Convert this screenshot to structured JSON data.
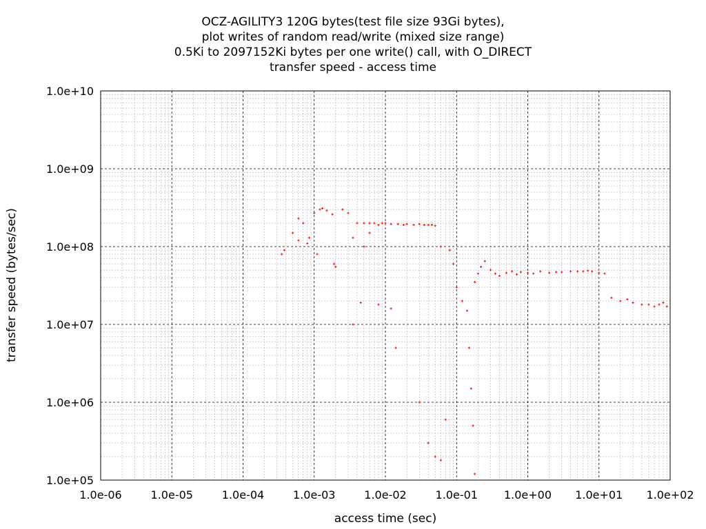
{
  "chart_data": {
    "type": "scatter",
    "title_lines": [
      "OCZ-AGILITY3 120G bytes(test file size 93Gi bytes),",
      "plot writes of random read/write (mixed size range)",
      "0.5Ki to 2097152Ki bytes per one write() call, with O_DIRECT",
      "transfer speed - access time"
    ],
    "xlabel": "access time (sec)",
    "ylabel": "transfer speed (bytes/sec)",
    "x_scale": "log",
    "y_scale": "log",
    "xlim": [
      1e-06,
      100
    ],
    "ylim": [
      100000.0,
      10000000000.0
    ],
    "x_ticks": [
      1e-06,
      1e-05,
      0.0001,
      0.001,
      0.01,
      0.1,
      1,
      10,
      100
    ],
    "x_tick_labels": [
      "1.0e-06",
      "1.0e-05",
      "1.0e-04",
      "1.0e-03",
      "1.0e-02",
      "1.0e-01",
      "1.0e+00",
      "1.0e+01",
      "1.0e+02"
    ],
    "y_ticks": [
      100000.0,
      1000000.0,
      10000000.0,
      100000000.0,
      1000000000.0,
      10000000000.0
    ],
    "y_tick_labels": [
      "1.0e+05",
      "1.0e+06",
      "1.0e+07",
      "1.0e+08",
      "1.0e+09",
      "1.0e+10"
    ],
    "grid": "major and minor, dashed",
    "marker_color": "#ff0000",
    "series": [
      {
        "points": [
          [
            0.00035,
            80000000.0
          ],
          [
            0.00038,
            90000000.0
          ],
          [
            0.0005,
            150000000.0
          ],
          [
            0.0006,
            120000000.0
          ],
          [
            0.0006,
            230000000.0
          ],
          [
            0.0007,
            200000000.0
          ],
          [
            0.0008,
            110000000.0
          ],
          [
            0.00085,
            130000000.0
          ],
          [
            0.001,
            270000000.0
          ],
          [
            0.0011,
            80000000.0
          ],
          [
            0.0012,
            300000000.0
          ],
          [
            0.0013,
            310000000.0
          ],
          [
            0.0015,
            290000000.0
          ],
          [
            0.0018,
            260000000.0
          ],
          [
            0.0019,
            60000000.0
          ],
          [
            0.002,
            55000000.0
          ],
          [
            0.0025,
            300000000.0
          ],
          [
            0.003,
            270000000.0
          ],
          [
            0.0035,
            130000000.0
          ],
          [
            0.0035,
            10000000.0
          ],
          [
            0.004,
            200000000.0
          ],
          [
            0.0045,
            19000000.0
          ],
          [
            0.005,
            100000000.0
          ],
          [
            0.005,
            200000000.0
          ],
          [
            0.006,
            200000000.0
          ],
          [
            0.006,
            150000000.0
          ],
          [
            0.007,
            200000000.0
          ],
          [
            0.008,
            190000000.0
          ],
          [
            0.008,
            18000000.0
          ],
          [
            0.009,
            200000000.0
          ],
          [
            0.01,
            200000000.0
          ],
          [
            0.012,
            195000000.0
          ],
          [
            0.012,
            16000000.0
          ],
          [
            0.014,
            5000000.0
          ],
          [
            0.015,
            195000000.0
          ],
          [
            0.018,
            190000000.0
          ],
          [
            0.02,
            195000000.0
          ],
          [
            0.025,
            190000000.0
          ],
          [
            0.03,
            195000000.0
          ],
          [
            0.035,
            190000000.0
          ],
          [
            0.04,
            190000000.0
          ],
          [
            0.045,
            190000000.0
          ],
          [
            0.05,
            185000000.0
          ],
          [
            0.03,
            1000000.0
          ],
          [
            0.04,
            300000.0
          ],
          [
            0.05,
            200000.0
          ],
          [
            0.06,
            180000.0
          ],
          [
            0.07,
            600000.0
          ],
          [
            0.06,
            100000000.0
          ],
          [
            0.08,
            90000000.0
          ],
          [
            0.09,
            60000000.0
          ],
          [
            0.1,
            30000000.0
          ],
          [
            0.12,
            20000000.0
          ],
          [
            0.14,
            15000000.0
          ],
          [
            0.15,
            5000000.0
          ],
          [
            0.16,
            1500000.0
          ],
          [
            0.17,
            500000.0
          ],
          [
            0.18,
            120000.0
          ],
          [
            0.18,
            35000000.0
          ],
          [
            0.2,
            45000000.0
          ],
          [
            0.22,
            55000000.0
          ],
          [
            0.25,
            65000000.0
          ],
          [
            0.3,
            50000000.0
          ],
          [
            0.35,
            45000000.0
          ],
          [
            0.4,
            42000000.0
          ],
          [
            0.5,
            46000000.0
          ],
          [
            0.6,
            48000000.0
          ],
          [
            0.7,
            44000000.0
          ],
          [
            0.8,
            47000000.0
          ],
          [
            1.0,
            46000000.0
          ],
          [
            1.2,
            45000000.0
          ],
          [
            1.5,
            48000000.0
          ],
          [
            2.0,
            46000000.0
          ],
          [
            2.5,
            47000000.0
          ],
          [
            3.0,
            47000000.0
          ],
          [
            4.0,
            48000000.0
          ],
          [
            5.0,
            48000000.0
          ],
          [
            6.0,
            48000000.0
          ],
          [
            7.0,
            49000000.0
          ],
          [
            8.0,
            48000000.0
          ],
          [
            10.0,
            46000000.0
          ],
          [
            12.0,
            45000000.0
          ],
          [
            15.0,
            22000000.0
          ],
          [
            20.0,
            20000000.0
          ],
          [
            25.0,
            21000000.0
          ],
          [
            30.0,
            19000000.0
          ],
          [
            40.0,
            18000000.0
          ],
          [
            50.0,
            18000000.0
          ],
          [
            60.0,
            17000000.0
          ],
          [
            70.0,
            18000000.0
          ],
          [
            80.0,
            19000000.0
          ],
          [
            90.0,
            17000000.0
          ]
        ]
      }
    ]
  }
}
